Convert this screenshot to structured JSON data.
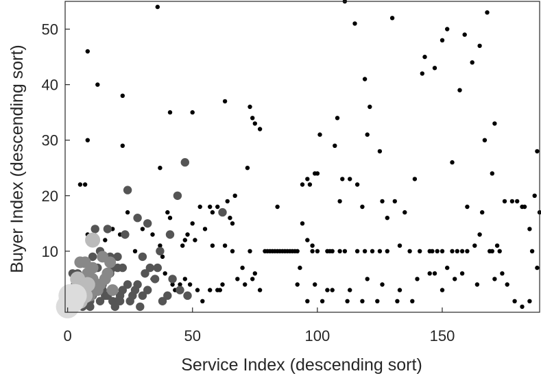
{
  "chart_data": {
    "type": "scatter",
    "xlabel": "Service Index (descending sort)",
    "ylabel": "Buyer Index (descending sort)",
    "xlim": [
      -1,
      189
    ],
    "ylim": [
      -1,
      55
    ],
    "x_ticks": [
      0,
      50,
      100,
      150
    ],
    "y_ticks": [
      10,
      20,
      30,
      40,
      50
    ],
    "grid": false,
    "box": true,
    "colors": {
      "small_dots": "#000000",
      "mid_dots": "#555555",
      "gray_dots": "#888888",
      "light_dots": "#bbbbbb",
      "pale_dots": "#dcdcdc",
      "axes": "#262626"
    },
    "series": [
      {
        "style": "small",
        "points": [
          [
            36,
            54
          ],
          [
            111,
            55
          ],
          [
            8,
            46
          ],
          [
            12,
            40
          ],
          [
            130,
            52
          ],
          [
            115,
            51
          ],
          [
            142,
            42
          ],
          [
            143,
            45
          ],
          [
            147,
            43
          ],
          [
            150,
            48
          ],
          [
            152,
            50
          ],
          [
            157,
            39
          ],
          [
            159,
            49
          ],
          [
            162,
            44
          ],
          [
            165,
            47
          ],
          [
            168,
            53
          ],
          [
            22,
            38
          ],
          [
            41,
            35
          ],
          [
            50,
            35
          ],
          [
            63,
            37
          ],
          [
            73,
            36
          ],
          [
            74,
            34
          ],
          [
            75,
            33
          ],
          [
            77,
            32
          ],
          [
            8,
            30
          ],
          [
            22,
            29
          ],
          [
            101,
            31
          ],
          [
            107,
            29
          ],
          [
            108,
            34
          ],
          [
            119,
            41
          ],
          [
            121,
            36
          ],
          [
            120,
            31
          ],
          [
            125,
            28
          ],
          [
            154,
            26
          ],
          [
            167,
            30
          ],
          [
            171,
            33
          ],
          [
            170,
            24
          ],
          [
            188,
            28
          ],
          [
            5,
            22
          ],
          [
            7,
            22
          ],
          [
            37,
            25
          ],
          [
            72,
            25
          ],
          [
            96,
            23
          ],
          [
            94,
            22
          ],
          [
            99,
            24
          ],
          [
            97,
            22
          ],
          [
            100,
            24
          ],
          [
            113,
            23
          ],
          [
            116,
            22
          ],
          [
            139,
            23
          ],
          [
            187,
            20
          ],
          [
            53,
            18
          ],
          [
            57,
            18
          ],
          [
            58,
            17
          ],
          [
            60,
            18
          ],
          [
            64,
            19
          ],
          [
            65,
            16
          ],
          [
            66,
            15
          ],
          [
            67,
            20
          ],
          [
            84,
            18
          ],
          [
            96,
            12
          ],
          [
            98,
            11
          ],
          [
            105,
            10
          ],
          [
            109,
            19
          ],
          [
            110,
            23
          ],
          [
            118,
            18
          ],
          [
            126,
            19
          ],
          [
            128,
            16
          ],
          [
            131,
            19
          ],
          [
            145,
            10
          ],
          [
            160,
            18
          ],
          [
            163,
            11
          ],
          [
            165,
            13
          ],
          [
            166,
            17
          ],
          [
            170,
            10
          ],
          [
            172,
            11
          ],
          [
            173,
            10
          ],
          [
            175,
            19
          ],
          [
            178,
            19
          ],
          [
            180,
            19
          ],
          [
            182,
            18
          ],
          [
            183,
            18
          ],
          [
            185,
            14
          ],
          [
            186,
            10
          ],
          [
            188,
            7
          ],
          [
            189,
            17
          ],
          [
            8,
            13
          ],
          [
            15,
            12
          ],
          [
            18,
            14
          ],
          [
            21,
            13
          ],
          [
            24,
            17
          ],
          [
            30,
            14
          ],
          [
            34,
            13
          ],
          [
            37,
            11
          ],
          [
            40,
            17
          ],
          [
            41,
            16
          ],
          [
            46,
            11
          ],
          [
            47,
            12
          ],
          [
            48,
            13
          ],
          [
            50,
            15
          ],
          [
            51,
            12
          ],
          [
            55,
            14
          ],
          [
            58,
            11
          ],
          [
            63,
            11
          ],
          [
            66,
            10
          ],
          [
            73,
            10
          ],
          [
            75,
            6
          ],
          [
            79,
            10
          ],
          [
            80,
            10
          ],
          [
            81,
            10
          ],
          [
            82,
            10
          ],
          [
            83,
            10
          ],
          [
            84,
            10
          ],
          [
            85,
            10
          ],
          [
            86,
            10
          ],
          [
            87,
            10
          ],
          [
            88,
            10
          ],
          [
            89,
            10
          ],
          [
            90,
            10
          ],
          [
            91,
            10
          ],
          [
            92,
            10
          ],
          [
            93,
            7
          ],
          [
            94,
            15
          ],
          [
            98,
            10
          ],
          [
            100,
            10
          ],
          [
            104,
            10
          ],
          [
            106,
            10
          ],
          [
            109,
            10
          ],
          [
            111,
            10
          ],
          [
            116,
            10
          ],
          [
            119,
            10
          ],
          [
            122,
            10
          ],
          [
            125,
            10
          ],
          [
            128,
            10
          ],
          [
            133,
            11
          ],
          [
            135,
            17
          ],
          [
            137,
            10
          ],
          [
            141,
            10
          ],
          [
            146,
            10
          ],
          [
            148,
            10
          ],
          [
            150,
            10
          ],
          [
            154,
            10
          ],
          [
            156,
            10
          ],
          [
            158,
            10
          ],
          [
            160,
            10
          ],
          [
            169,
            10
          ],
          [
            27,
            10
          ],
          [
            34,
            5
          ],
          [
            35,
            5
          ],
          [
            38,
            9
          ],
          [
            39,
            6
          ],
          [
            42,
            4
          ],
          [
            43,
            3
          ],
          [
            45,
            4
          ],
          [
            47,
            5
          ],
          [
            49,
            4
          ],
          [
            52,
            3
          ],
          [
            54,
            1
          ],
          [
            57,
            3
          ],
          [
            60,
            3
          ],
          [
            61,
            3
          ],
          [
            62,
            4
          ],
          [
            68,
            5
          ],
          [
            70,
            7
          ],
          [
            71,
            4
          ],
          [
            74,
            5
          ],
          [
            77,
            3
          ],
          [
            92,
            4
          ],
          [
            96,
            1
          ],
          [
            99,
            4
          ],
          [
            102,
            1
          ],
          [
            104,
            3
          ],
          [
            106,
            3
          ],
          [
            112,
            1
          ],
          [
            113,
            3
          ],
          [
            118,
            1
          ],
          [
            120,
            5
          ],
          [
            124,
            1
          ],
          [
            126,
            4
          ],
          [
            132,
            1
          ],
          [
            133,
            3
          ],
          [
            138,
            1
          ],
          [
            140,
            5
          ],
          [
            145,
            6
          ],
          [
            147,
            6
          ],
          [
            150,
            3
          ],
          [
            152,
            7
          ],
          [
            155,
            5
          ],
          [
            158,
            6
          ],
          [
            164,
            4
          ],
          [
            171,
            5
          ],
          [
            174,
            6
          ],
          [
            176,
            4
          ],
          [
            179,
            1
          ],
          [
            182,
            0
          ],
          [
            185,
            1
          ]
        ]
      },
      {
        "style": "mid",
        "points": [
          [
            24,
            21
          ],
          [
            44,
            20
          ],
          [
            47,
            26
          ],
          [
            41,
            13
          ],
          [
            62,
            17
          ],
          [
            28,
            16
          ],
          [
            32,
            15
          ],
          [
            16,
            14
          ],
          [
            23,
            13
          ],
          [
            11,
            14
          ],
          [
            13,
            10
          ],
          [
            14,
            9
          ],
          [
            17,
            9
          ],
          [
            10,
            9
          ],
          [
            30,
            9
          ],
          [
            20,
            9
          ],
          [
            37,
            10
          ],
          [
            36,
            7
          ],
          [
            18,
            7
          ],
          [
            20,
            7
          ],
          [
            33,
            7
          ],
          [
            28,
            4
          ],
          [
            30,
            2
          ],
          [
            31,
            6
          ],
          [
            27,
            3
          ],
          [
            25,
            1
          ],
          [
            24,
            4
          ],
          [
            22,
            3
          ],
          [
            21,
            2
          ],
          [
            20,
            1
          ],
          [
            19,
            0
          ],
          [
            18,
            3
          ],
          [
            17,
            6
          ],
          [
            15,
            5
          ],
          [
            15,
            2
          ],
          [
            14,
            3
          ],
          [
            13,
            1
          ],
          [
            11,
            3
          ],
          [
            10,
            2
          ],
          [
            9,
            0
          ],
          [
            8,
            2
          ],
          [
            6,
            5
          ],
          [
            5,
            3
          ],
          [
            4,
            6
          ],
          [
            3,
            4
          ],
          [
            2,
            6
          ],
          [
            1,
            3
          ],
          [
            0,
            2
          ],
          [
            2,
            0
          ],
          [
            3,
            1
          ],
          [
            4,
            0
          ],
          [
            5,
            1
          ],
          [
            6,
            0
          ],
          [
            7,
            3
          ],
          [
            8,
            4
          ],
          [
            9,
            1
          ],
          [
            10,
            4
          ],
          [
            12,
            7
          ],
          [
            14,
            4
          ],
          [
            16,
            2
          ],
          [
            18,
            1
          ],
          [
            21,
            1
          ],
          [
            22,
            7
          ],
          [
            26,
            2
          ],
          [
            29,
            0
          ],
          [
            32,
            3
          ],
          [
            35,
            5
          ],
          [
            38,
            1
          ],
          [
            40,
            2
          ],
          [
            42,
            5
          ],
          [
            45,
            3
          ],
          [
            48,
            2
          ]
        ]
      },
      {
        "style": "gray",
        "points": [
          [
            5,
            8
          ],
          [
            7,
            8
          ],
          [
            10,
            5
          ],
          [
            14,
            9
          ],
          [
            17,
            8
          ],
          [
            12,
            3
          ],
          [
            10,
            7
          ],
          [
            8,
            6
          ],
          [
            7,
            4
          ],
          [
            6,
            3
          ],
          [
            4,
            5
          ],
          [
            3,
            3
          ],
          [
            2,
            2
          ],
          [
            1,
            1
          ],
          [
            0,
            1
          ],
          [
            3,
            1
          ],
          [
            5,
            2
          ],
          [
            9,
            2
          ],
          [
            11,
            4
          ],
          [
            13,
            4
          ],
          [
            15,
            5
          ],
          [
            16,
            6
          ],
          [
            18,
            3
          ]
        ]
      },
      {
        "style": "light",
        "points": [
          [
            10,
            12
          ],
          [
            4,
            5
          ],
          [
            6,
            3
          ],
          [
            3,
            2
          ],
          [
            2,
            1
          ],
          [
            1,
            1
          ],
          [
            5,
            1
          ],
          [
            7,
            2
          ],
          [
            8,
            4
          ]
        ]
      },
      {
        "style": "pale",
        "points": [
          [
            0,
            0
          ],
          [
            1,
            1
          ],
          [
            2,
            1
          ],
          [
            1,
            2
          ],
          [
            3,
            2
          ]
        ]
      }
    ]
  }
}
